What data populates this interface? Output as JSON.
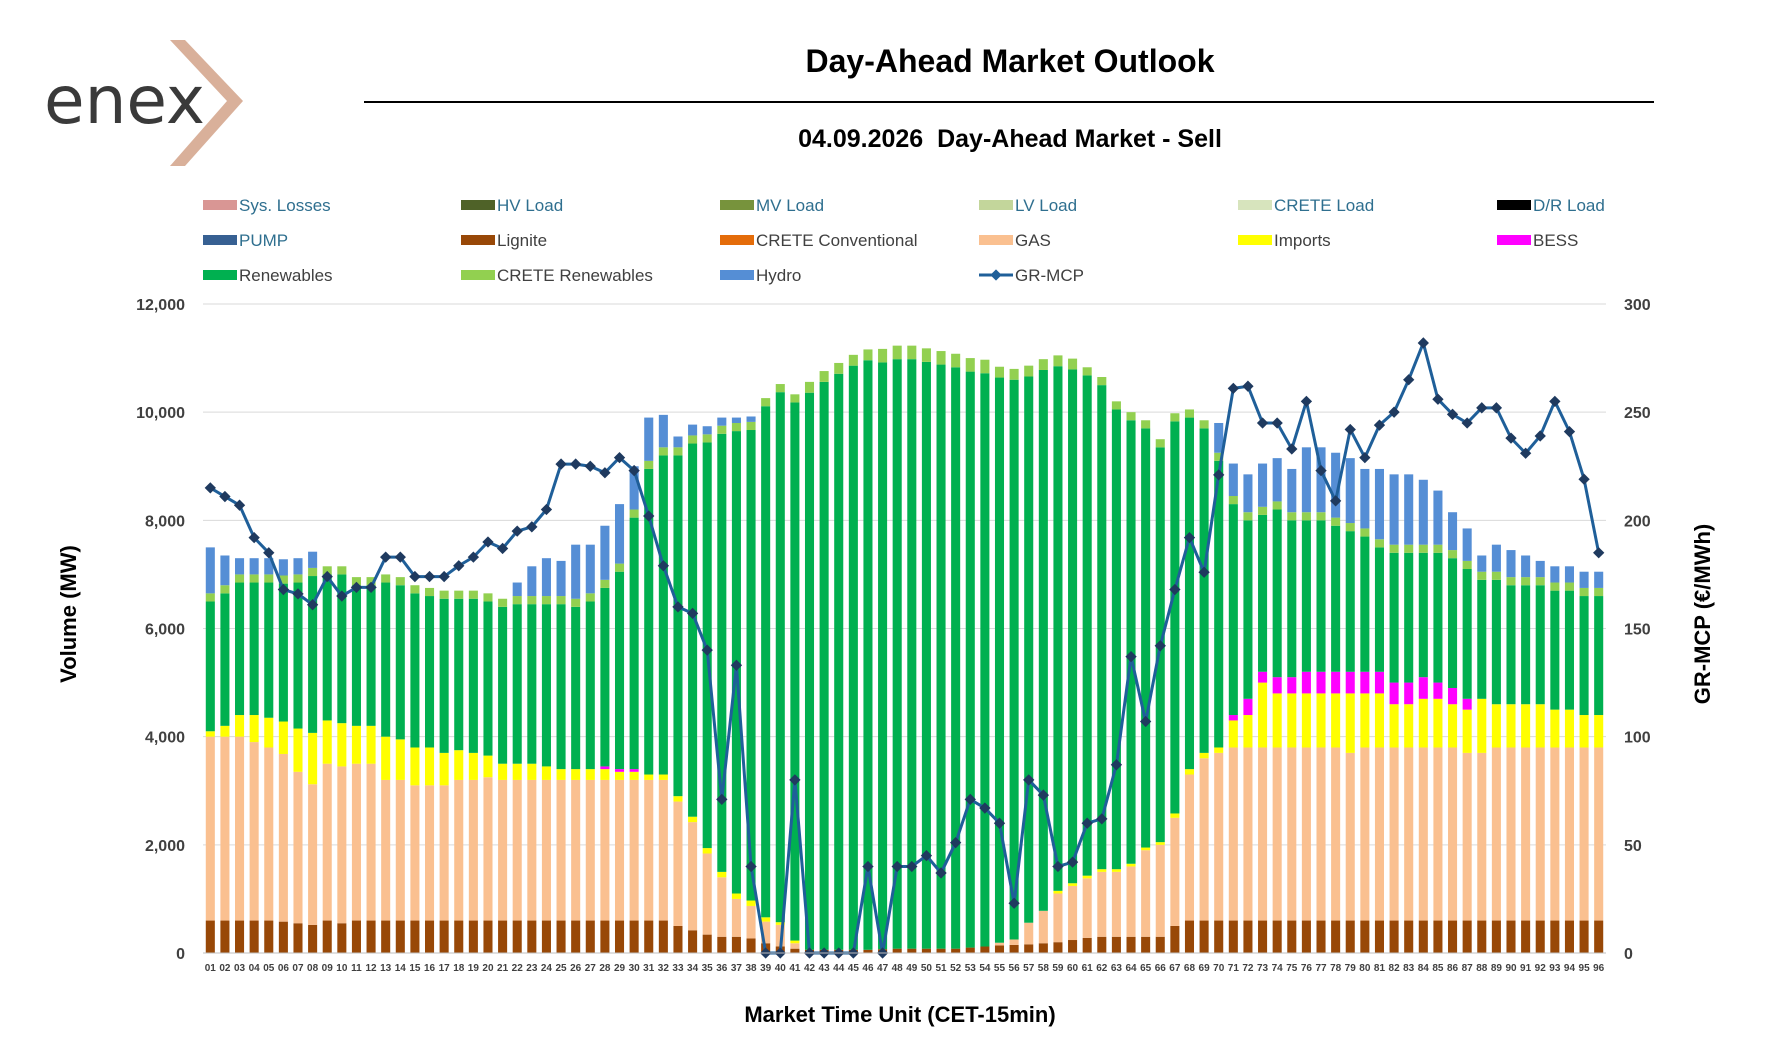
{
  "logo_text": "enex",
  "page_title": "Day-Ahead Market Outlook",
  "chart_data": {
    "type": "bar",
    "title": "04.09.2026  Day-Ahead Market - Sell",
    "xlabel": "Market Time Unit (CET-15min)",
    "ylabel": "Volume (MW)",
    "y2label": "GR-MCP (€/MWh)",
    "ylim": [
      0,
      12000
    ],
    "y2lim": [
      0,
      300
    ],
    "yticks": [
      "0",
      "2,000",
      "4,000",
      "6,000",
      "8,000",
      "10,000",
      "12,000"
    ],
    "y2ticks": [
      "0",
      "50",
      "100",
      "150",
      "200",
      "250",
      "300"
    ],
    "grid": true,
    "legend_position": "top",
    "categories": [
      "01",
      "02",
      "03",
      "04",
      "05",
      "06",
      "07",
      "08",
      "09",
      "10",
      "11",
      "12",
      "13",
      "14",
      "15",
      "16",
      "17",
      "18",
      "19",
      "20",
      "21",
      "22",
      "23",
      "24",
      "25",
      "26",
      "27",
      "28",
      "29",
      "30",
      "31",
      "32",
      "33",
      "34",
      "35",
      "36",
      "37",
      "38",
      "39",
      "40",
      "41",
      "42",
      "43",
      "44",
      "45",
      "46",
      "47",
      "48",
      "49",
      "50",
      "51",
      "52",
      "53",
      "54",
      "55",
      "56",
      "57",
      "58",
      "59",
      "60",
      "61",
      "62",
      "63",
      "64",
      "65",
      "66",
      "67",
      "68",
      "69",
      "70",
      "71",
      "72",
      "73",
      "74",
      "75",
      "76",
      "77",
      "78",
      "79",
      "80",
      "81",
      "82",
      "83",
      "84",
      "85",
      "86",
      "87",
      "88",
      "89",
      "90",
      "91",
      "92",
      "93",
      "94",
      "95",
      "96"
    ],
    "legend": [
      {
        "name": "Sys. Losses",
        "color": "#d99694",
        "kind": "bar"
      },
      {
        "name": "HV Load",
        "color": "#4f6228",
        "kind": "bar"
      },
      {
        "name": "MV Load",
        "color": "#77933c",
        "kind": "bar"
      },
      {
        "name": "LV Load",
        "color": "#c3d69b",
        "kind": "bar"
      },
      {
        "name": "CRETE Load",
        "color": "#d7e4bd",
        "kind": "bar"
      },
      {
        "name": "D/R Load",
        "color": "#000000",
        "kind": "bar"
      },
      {
        "name": "PUMP",
        "color": "#376092",
        "kind": "bar"
      },
      {
        "name": "Lignite",
        "color": "#984807",
        "kind": "bar"
      },
      {
        "name": "CRETE Conventional",
        "color": "#e46c0a",
        "kind": "bar"
      },
      {
        "name": "GAS",
        "color": "#fac090",
        "kind": "bar"
      },
      {
        "name": "Imports",
        "color": "#ffff00",
        "kind": "bar"
      },
      {
        "name": "BESS",
        "color": "#ff00ff",
        "kind": "bar"
      },
      {
        "name": "Renewables",
        "color": "#00b050",
        "kind": "bar"
      },
      {
        "name": "CRETE Renewables",
        "color": "#92d050",
        "kind": "bar"
      },
      {
        "name": "Hydro",
        "color": "#558ed5",
        "kind": "bar"
      },
      {
        "name": "GR-MCP",
        "color": "#1f5f99",
        "kind": "line"
      }
    ],
    "series": [
      {
        "name": "Lignite",
        "values": [
          600,
          600,
          600,
          600,
          600,
          580,
          550,
          520,
          600,
          550,
          600,
          600,
          600,
          600,
          600,
          600,
          600,
          600,
          600,
          600,
          600,
          600,
          600,
          600,
          600,
          600,
          600,
          600,
          600,
          600,
          600,
          600,
          500,
          420,
          340,
          300,
          300,
          270,
          180,
          120,
          80,
          60,
          60,
          60,
          60,
          60,
          70,
          80,
          80,
          80,
          80,
          80,
          100,
          120,
          140,
          150,
          160,
          180,
          200,
          240,
          280,
          300,
          300,
          300,
          300,
          300,
          500,
          600,
          600,
          600,
          600,
          600,
          600,
          600,
          600,
          600,
          600,
          600,
          600,
          600,
          600,
          600,
          600,
          600,
          600,
          600,
          600,
          600,
          600,
          600,
          600,
          600,
          600,
          600,
          600,
          600
        ]
      },
      {
        "name": "GAS",
        "values": [
          3400,
          3400,
          3400,
          3300,
          3200,
          3100,
          2800,
          2600,
          2900,
          2900,
          2900,
          2900,
          2600,
          2600,
          2500,
          2500,
          2500,
          2600,
          2600,
          2650,
          2600,
          2600,
          2600,
          2600,
          2600,
          2600,
          2600,
          2600,
          2600,
          2600,
          2600,
          2600,
          2300,
          2000,
          1500,
          1100,
          700,
          600,
          400,
          400,
          100,
          0,
          0,
          0,
          0,
          0,
          0,
          0,
          0,
          0,
          0,
          0,
          0,
          0,
          50,
          100,
          400,
          600,
          900,
          1000,
          1100,
          1200,
          1200,
          1300,
          1600,
          1700,
          2000,
          2700,
          3000,
          3100,
          3200,
          3200,
          3200,
          3200,
          3200,
          3200,
          3200,
          3200,
          3100,
          3200,
          3200,
          3200,
          3200,
          3200,
          3200,
          3200,
          3100,
          3100,
          3200,
          3200,
          3200,
          3200,
          3200,
          3200,
          3200,
          3200
        ]
      },
      {
        "name": "Imports",
        "values": [
          100,
          200,
          400,
          500,
          550,
          600,
          800,
          950,
          800,
          800,
          700,
          700,
          800,
          750,
          700,
          700,
          600,
          550,
          500,
          400,
          300,
          300,
          300,
          250,
          200,
          200,
          200,
          200,
          150,
          150,
          100,
          100,
          100,
          100,
          100,
          100,
          100,
          100,
          80,
          50,
          50,
          0,
          0,
          0,
          0,
          0,
          0,
          0,
          0,
          0,
          0,
          0,
          0,
          0,
          0,
          0,
          0,
          0,
          50,
          50,
          50,
          50,
          50,
          50,
          50,
          50,
          80,
          100,
          100,
          100,
          500,
          600,
          1200,
          1000,
          1000,
          1000,
          1000,
          1000,
          1100,
          1000,
          1000,
          800,
          800,
          900,
          900,
          800,
          800,
          1000,
          800,
          800,
          800,
          800,
          700,
          700,
          600,
          600
        ]
      },
      {
        "name": "BESS",
        "values": [
          0,
          0,
          0,
          0,
          0,
          0,
          0,
          0,
          0,
          0,
          0,
          0,
          0,
          0,
          0,
          0,
          0,
          0,
          0,
          0,
          0,
          0,
          0,
          0,
          0,
          0,
          0,
          50,
          50,
          50,
          0,
          0,
          0,
          0,
          0,
          0,
          0,
          0,
          0,
          0,
          0,
          0,
          0,
          0,
          0,
          0,
          0,
          0,
          0,
          0,
          0,
          0,
          0,
          0,
          0,
          0,
          0,
          0,
          0,
          0,
          0,
          0,
          0,
          0,
          0,
          0,
          0,
          0,
          0,
          0,
          100,
          300,
          200,
          300,
          300,
          400,
          400,
          400,
          400,
          400,
          400,
          400,
          400,
          400,
          300,
          300,
          200,
          0,
          0,
          0,
          0,
          0,
          0,
          0,
          0,
          0
        ]
      },
      {
        "name": "Renewables",
        "values": [
          2400,
          2450,
          2450,
          2450,
          2500,
          2550,
          2700,
          2900,
          2700,
          2750,
          2600,
          2600,
          2850,
          2850,
          2850,
          2800,
          2850,
          2800,
          2850,
          2850,
          2900,
          2950,
          2950,
          3000,
          3050,
          3000,
          3100,
          3300,
          3650,
          4650,
          5650,
          5900,
          6300,
          6900,
          7500,
          8100,
          8550,
          8700,
          9450,
          9800,
          9950,
          10300,
          10500,
          10650,
          10800,
          10900,
          10850,
          10900,
          10900,
          10850,
          10800,
          10750,
          10650,
          10600,
          10450,
          10350,
          10100,
          10000,
          9700,
          9500,
          9250,
          8950,
          8500,
          8200,
          7750,
          7300,
          7250,
          6500,
          6000,
          5300,
          3900,
          3300,
          2900,
          3100,
          2900,
          2800,
          2800,
          2700,
          2600,
          2500,
          2300,
          2400,
          2400,
          2300,
          2400,
          2400,
          2400,
          2200,
          2300,
          2200,
          2200,
          2200,
          2200,
          2200,
          2200,
          2200
        ]
      },
      {
        "name": "CRETE Renewables",
        "values": [
          150,
          150,
          150,
          150,
          150,
          150,
          150,
          150,
          150,
          150,
          150,
          150,
          150,
          150,
          150,
          150,
          150,
          150,
          150,
          150,
          150,
          150,
          150,
          150,
          150,
          150,
          150,
          150,
          150,
          150,
          150,
          150,
          150,
          150,
          150,
          150,
          150,
          150,
          150,
          150,
          150,
          200,
          200,
          200,
          200,
          200,
          250,
          250,
          250,
          250,
          250,
          250,
          250,
          250,
          200,
          200,
          200,
          200,
          200,
          200,
          150,
          150,
          150,
          150,
          150,
          150,
          150,
          150,
          150,
          150,
          150,
          150,
          150,
          150,
          150,
          150,
          150,
          150,
          150,
          150,
          150,
          150,
          150,
          150,
          150,
          150,
          150,
          150,
          150,
          150,
          150,
          150,
          150,
          150,
          150,
          150
        ]
      },
      {
        "name": "Hydro",
        "values": [
          850,
          550,
          300,
          300,
          300,
          300,
          300,
          300,
          0,
          0,
          0,
          0,
          0,
          0,
          0,
          0,
          0,
          0,
          0,
          0,
          0,
          250,
          550,
          700,
          650,
          1000,
          900,
          1000,
          1100,
          800,
          800,
          600,
          200,
          200,
          150,
          150,
          100,
          100,
          0,
          0,
          0,
          0,
          0,
          0,
          0,
          0,
          0,
          0,
          0,
          0,
          0,
          0,
          0,
          0,
          0,
          0,
          0,
          0,
          0,
          0,
          0,
          0,
          0,
          0,
          0,
          0,
          0,
          0,
          0,
          550,
          600,
          700,
          800,
          800,
          800,
          1200,
          1200,
          1200,
          1200,
          1100,
          1300,
          1300,
          1300,
          1200,
          1000,
          700,
          600,
          300,
          500,
          500,
          400,
          300,
          300,
          300,
          300,
          300
        ]
      },
      {
        "name": "GR-MCP",
        "axis": "right",
        "values": [
          215,
          211,
          207,
          192,
          185,
          168,
          166,
          161,
          174,
          165,
          169,
          169,
          183,
          183,
          174,
          174,
          174,
          179,
          183,
          190,
          187,
          195,
          197,
          205,
          226,
          226,
          225,
          222,
          229,
          223,
          202,
          179,
          160,
          157,
          140,
          71,
          133,
          40,
          0,
          0,
          80,
          0,
          0,
          0,
          0,
          40,
          0,
          40,
          40,
          45,
          37,
          51,
          71,
          67,
          60,
          23,
          80,
          73,
          40,
          42,
          60,
          62,
          87,
          137,
          107,
          142,
          168,
          192,
          176,
          221,
          261,
          262,
          245,
          245,
          233,
          255,
          223,
          209,
          242,
          229,
          244,
          250,
          265,
          282,
          256,
          249,
          245,
          252,
          252,
          238,
          231,
          239,
          255,
          241,
          219,
          185
        ]
      }
    ]
  }
}
